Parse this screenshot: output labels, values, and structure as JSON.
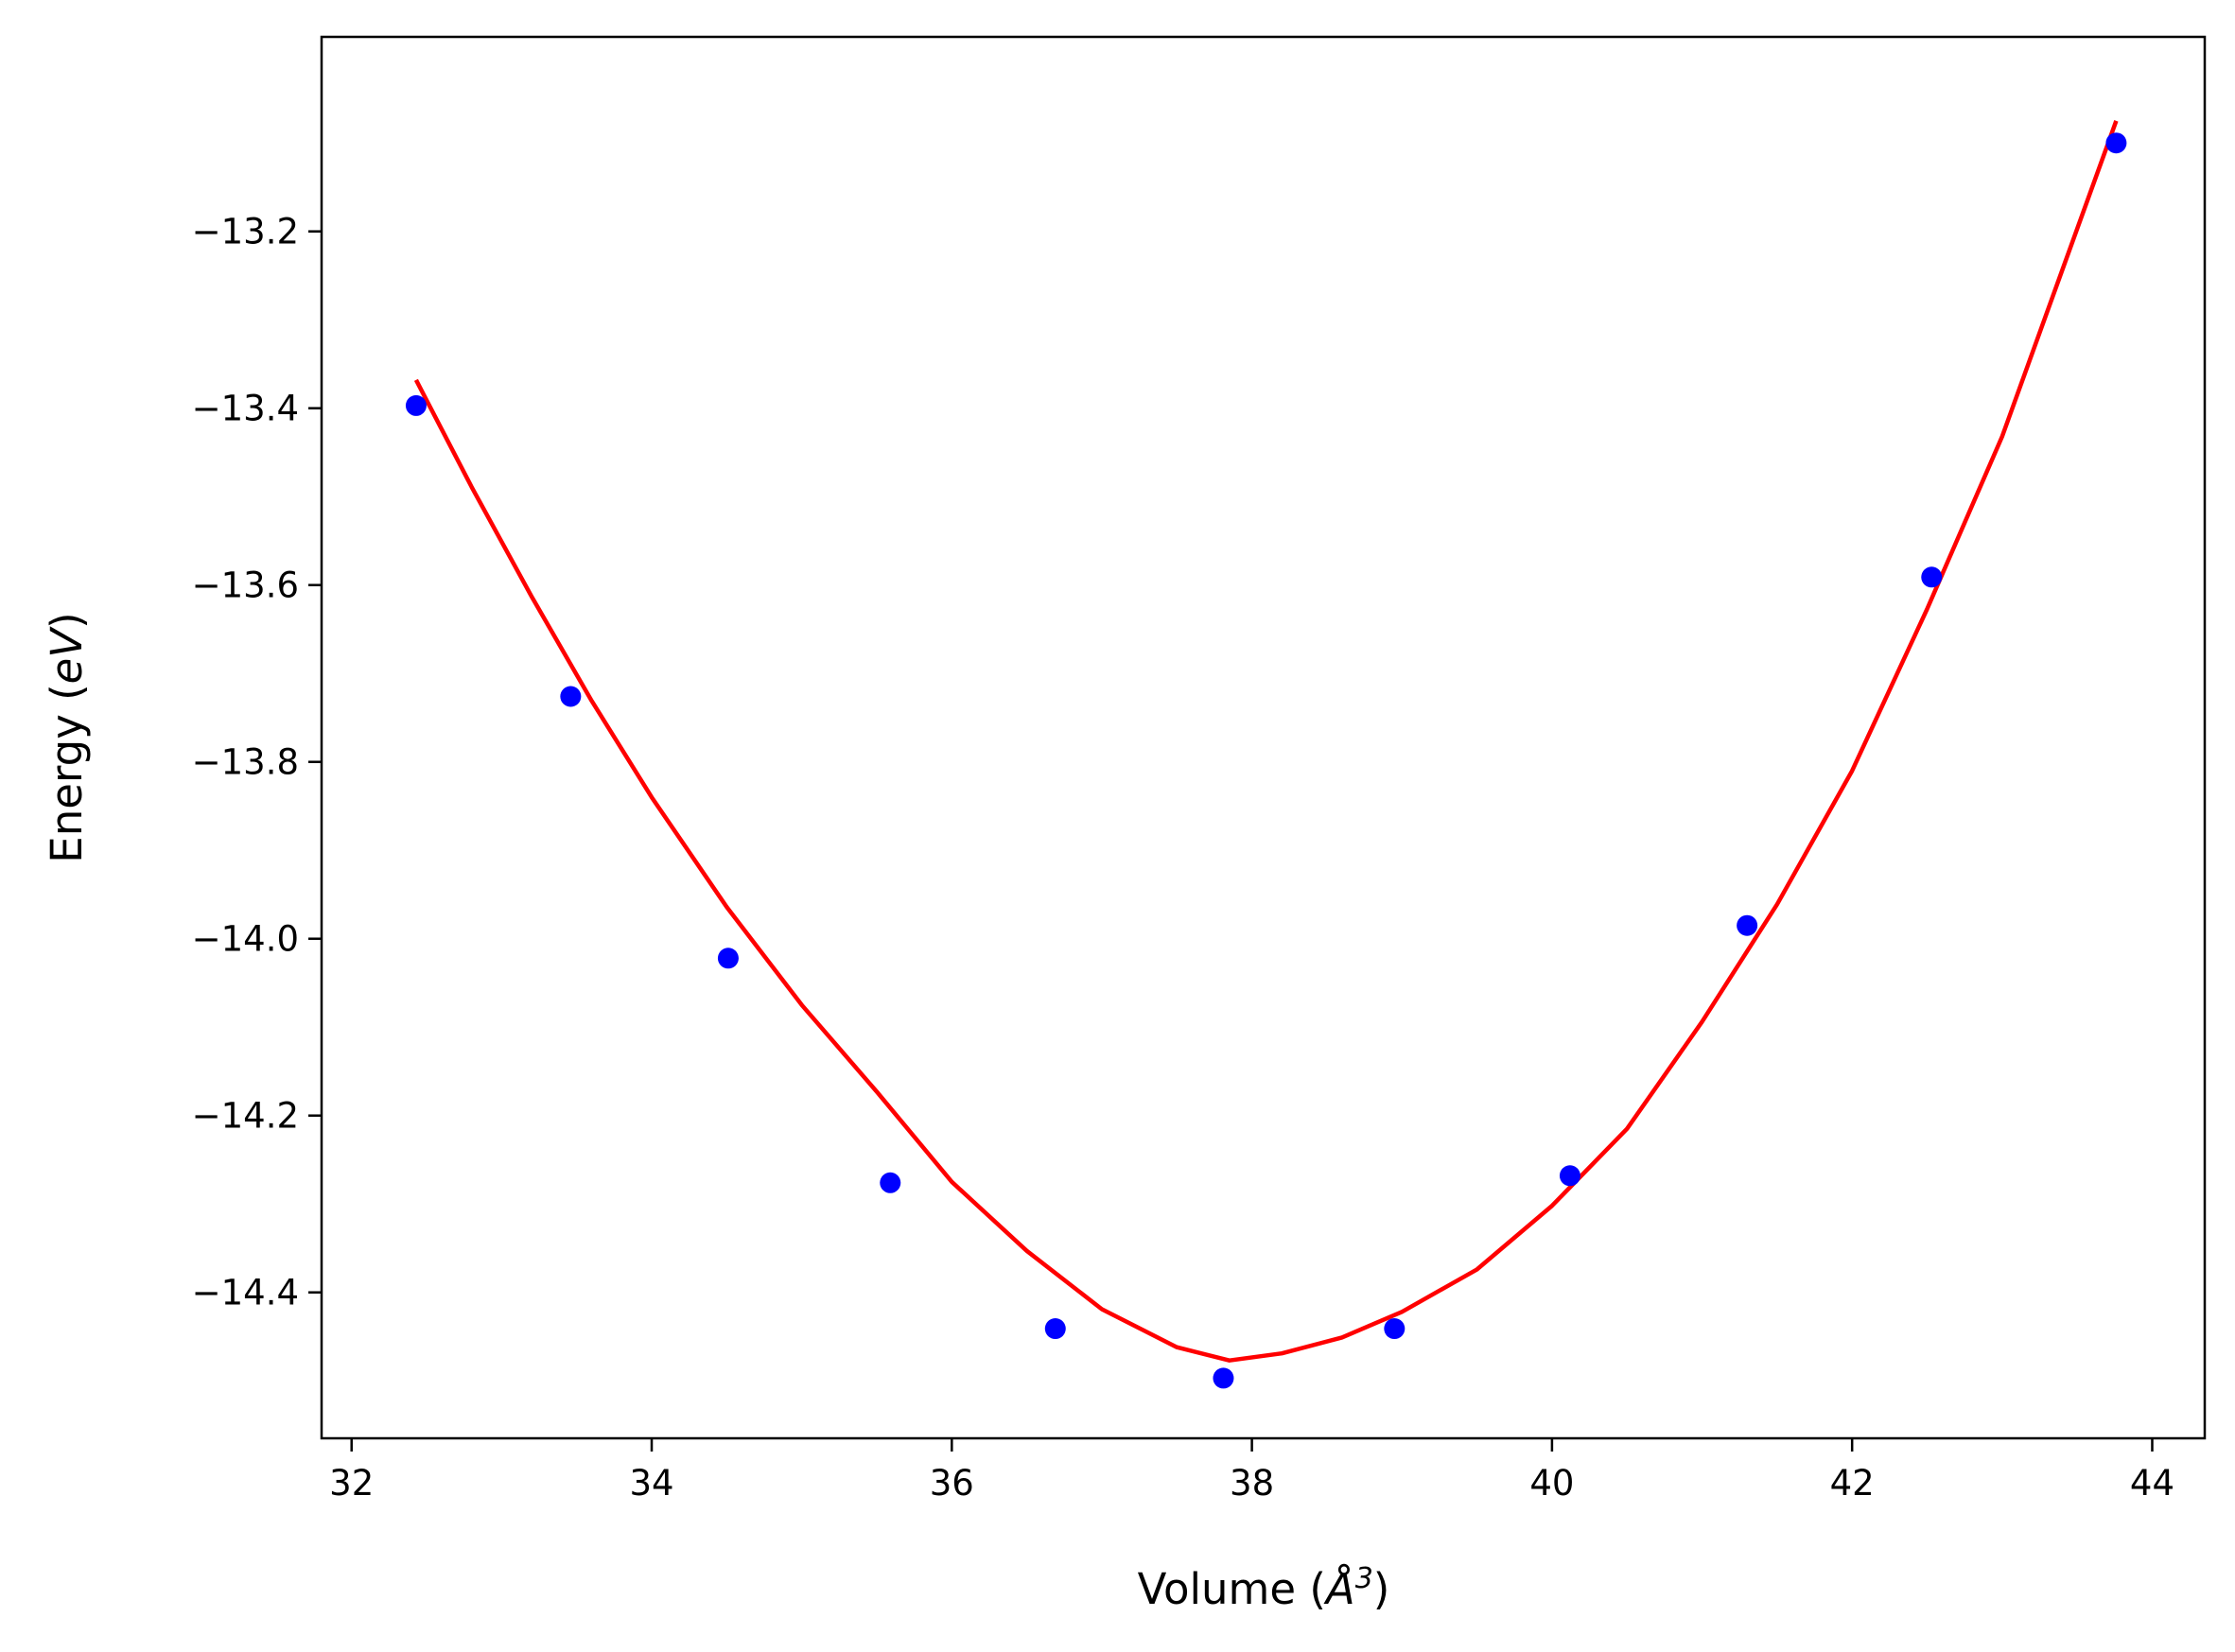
{
  "chart_data": {
    "type": "scatter",
    "title": "",
    "xlabel": {
      "prefix": "Volume (",
      "symbol": "Å",
      "superscript": "3",
      "suffix": ")"
    },
    "ylabel": {
      "prefix": "Energy (",
      "symbol": "eV",
      "suffix": ")"
    },
    "xlim": [
      31.8,
      44.35
    ],
    "ylim": [
      -14.565,
      -12.98
    ],
    "xticks": [
      32,
      34,
      36,
      38,
      40,
      42,
      44
    ],
    "xtick_labels": [
      "32",
      "34",
      "36",
      "38",
      "40",
      "42",
      "44"
    ],
    "yticks": [
      -14.4,
      -14.2,
      -14.0,
      -13.8,
      -13.6,
      -13.4,
      -13.2
    ],
    "ytick_labels": [
      "−14.4",
      "−14.2",
      "−14.0",
      "−13.8",
      "−13.6",
      "−13.4",
      "−13.2"
    ],
    "grid": false,
    "legend": false,
    "series": [
      {
        "kind": "points",
        "color": "#0000ff",
        "x": [
          32.43,
          33.46,
          34.51,
          35.59,
          36.69,
          37.81,
          38.95,
          40.12,
          41.3,
          42.53,
          43.76
        ],
        "y": [
          -13.397,
          -13.726,
          -14.022,
          -14.276,
          -14.441,
          -14.497,
          -14.441,
          -14.268,
          -13.985,
          -13.591,
          -13.1
        ]
      },
      {
        "kind": "fit-line",
        "color": "#ff0000",
        "x": [
          32.43,
          32.8,
          33.2,
          33.6,
          34.0,
          34.5,
          35.0,
          35.5,
          36.0,
          36.5,
          37.0,
          37.5,
          37.85,
          38.2,
          38.6,
          39.0,
          39.5,
          40.0,
          40.5,
          41.0,
          41.5,
          42.0,
          42.5,
          43.0,
          43.4,
          43.76
        ],
        "y": [
          -13.368,
          -13.489,
          -13.613,
          -13.731,
          -13.84,
          -13.964,
          -14.075,
          -14.173,
          -14.275,
          -14.353,
          -14.419,
          -14.462,
          -14.477,
          -14.469,
          -14.451,
          -14.422,
          -14.374,
          -14.302,
          -14.215,
          -14.094,
          -13.961,
          -13.81,
          -13.627,
          -13.432,
          -13.244,
          -13.075
        ]
      }
    ]
  }
}
